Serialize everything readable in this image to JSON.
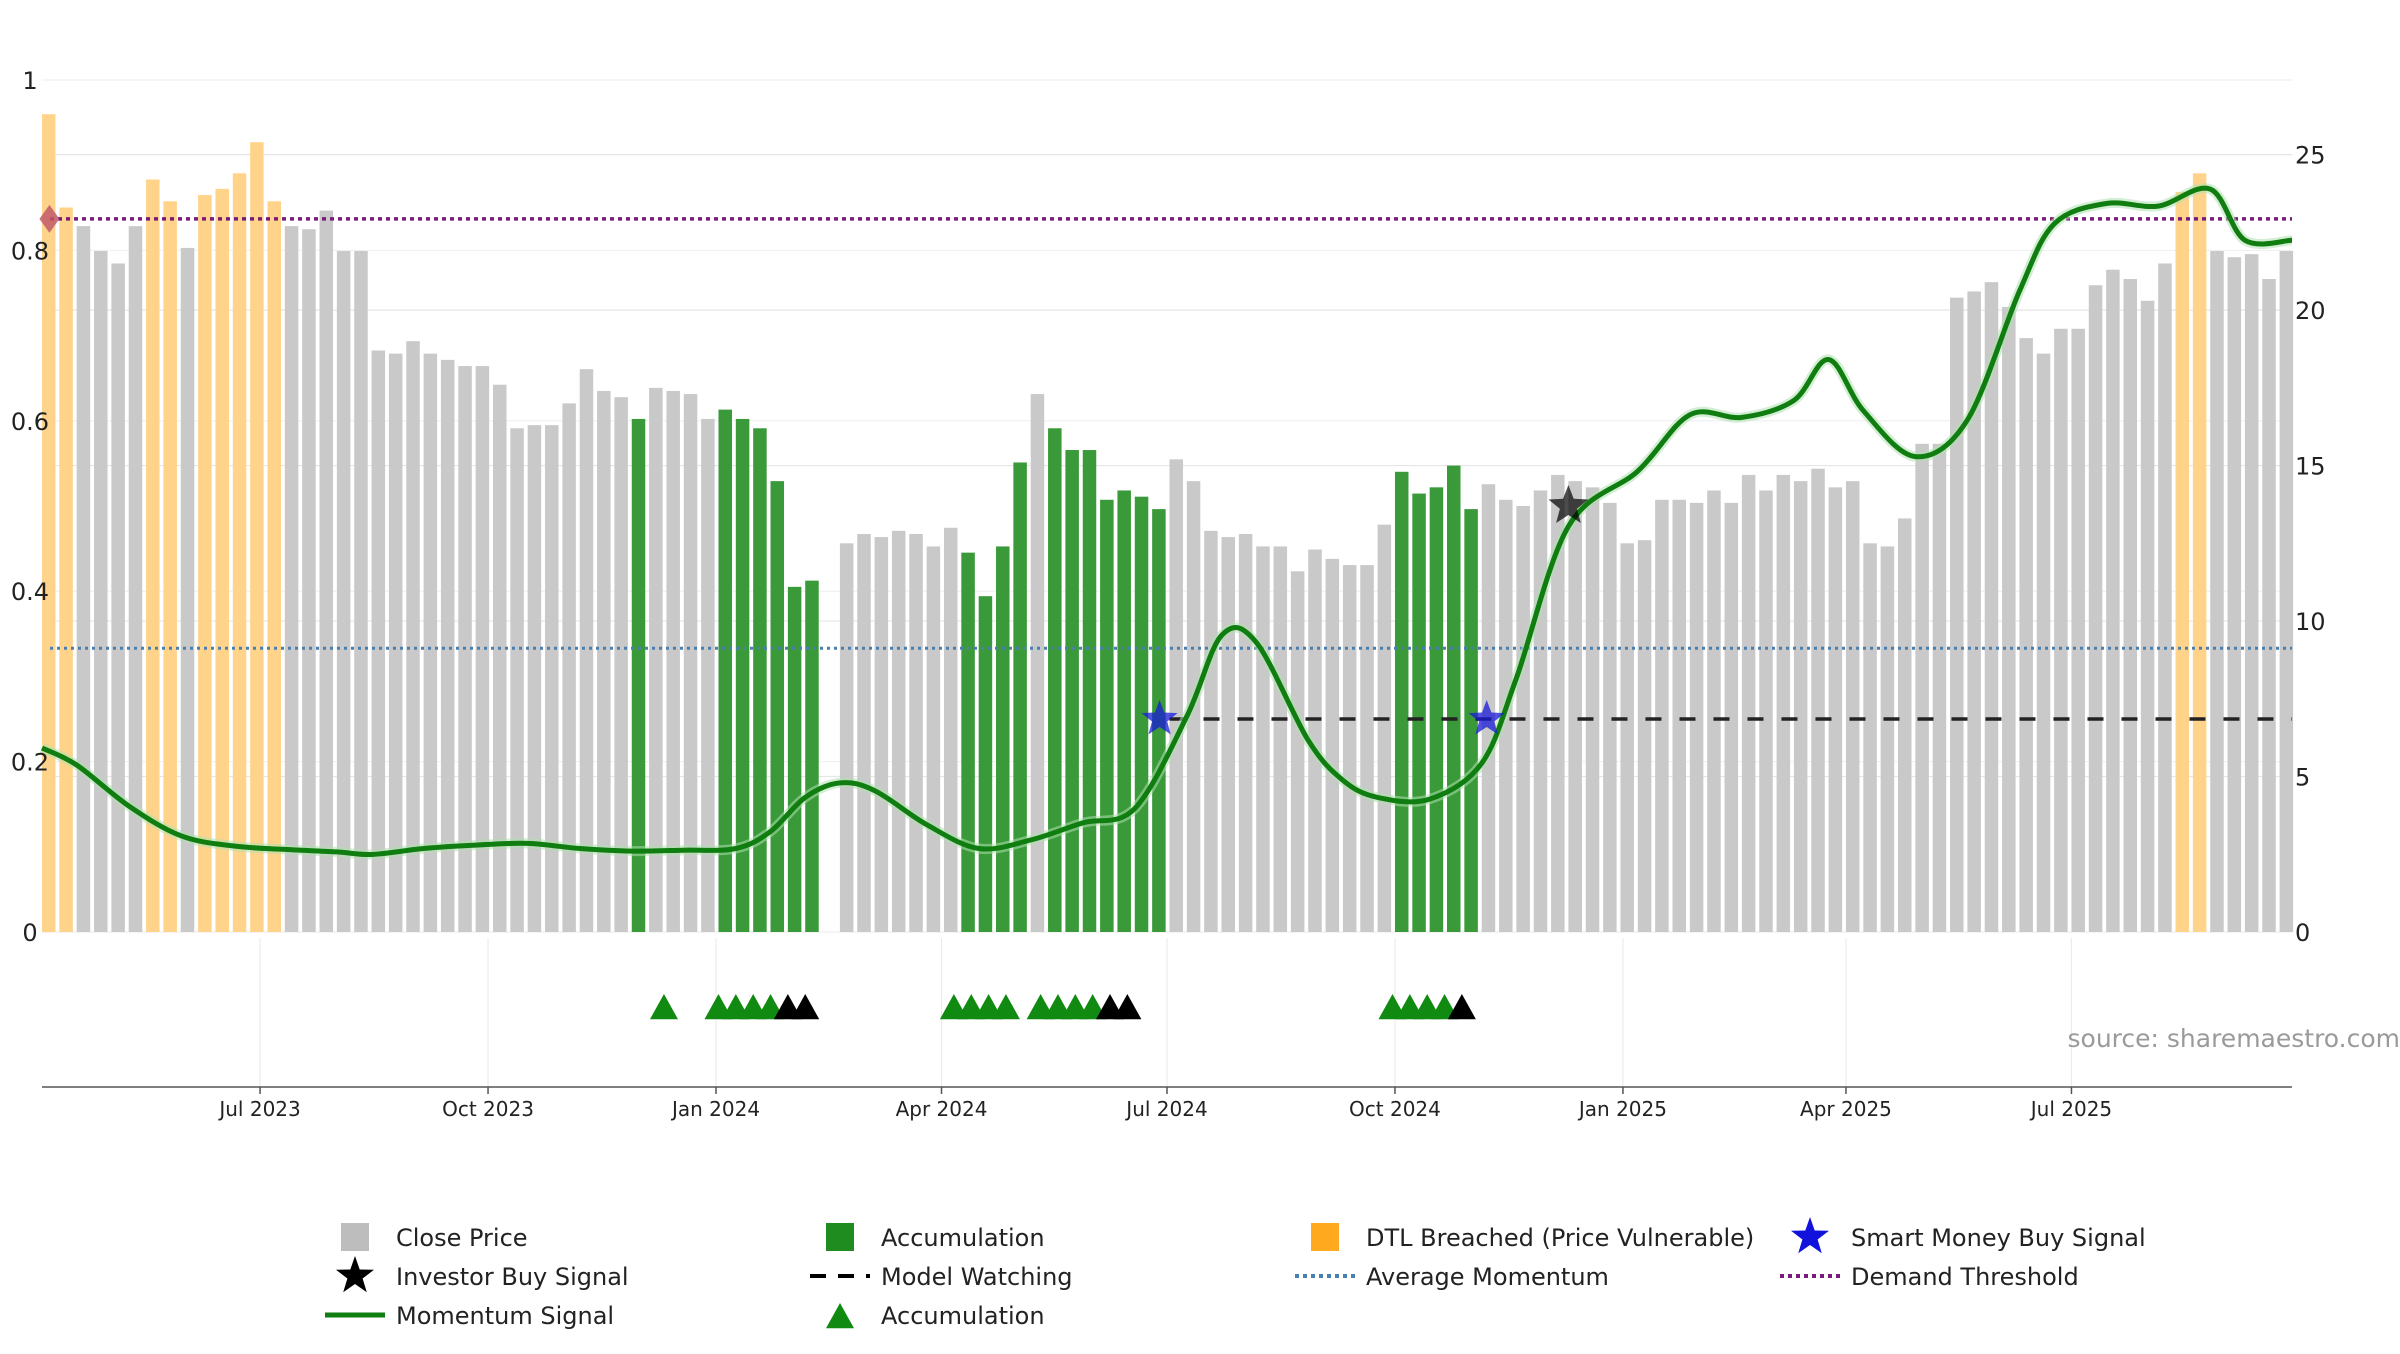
{
  "chart_data": {
    "type": "bar",
    "source_text": "source: sharemaestro.com",
    "left_axis": {
      "range": [
        0,
        1
      ],
      "ticks": [
        0,
        0.2,
        0.4,
        0.6,
        0.8,
        1
      ],
      "tick_labels": [
        "0",
        "0.2",
        "0.4",
        "0.6",
        "0.8",
        "1"
      ]
    },
    "right_axis": {
      "range": [
        0,
        27.4
      ],
      "ticks": [
        0,
        5,
        10,
        15,
        20,
        25
      ],
      "tick_labels": [
        "0",
        "5",
        "10",
        "15",
        "20",
        "25"
      ]
    },
    "x_axis": {
      "start": "2023-04-04",
      "end": "2025-09-28",
      "ticks": [
        "2023-07-01",
        "2023-10-01",
        "2024-01-01",
        "2024-04-01",
        "2024-07-01",
        "2024-10-01",
        "2025-01-01",
        "2025-04-01",
        "2025-07-01"
      ],
      "tick_labels": [
        "Jul 2023",
        "Oct 2023",
        "Jan 2024",
        "Apr 2024",
        "Jul 2024",
        "Oct 2024",
        "Jan 2025",
        "Apr 2025",
        "Jul 2025"
      ]
    },
    "grid": true,
    "bar_dates": [
      "2023-04-04",
      "2023-04-11",
      "2023-04-18",
      "2023-04-25",
      "2023-05-02",
      "2023-05-09",
      "2023-05-16",
      "2023-05-23",
      "2023-05-30",
      "2023-06-06",
      "2023-06-13",
      "2023-06-20",
      "2023-06-27",
      "2023-07-04",
      "2023-07-11",
      "2023-07-18",
      "2023-07-25",
      "2023-08-01",
      "2023-08-08",
      "2023-08-15",
      "2023-08-22",
      "2023-08-29",
      "2023-09-05",
      "2023-09-12",
      "2023-09-19",
      "2023-09-26",
      "2023-10-03",
      "2023-10-10",
      "2023-10-17",
      "2023-10-24",
      "2023-10-31",
      "2023-11-07",
      "2023-11-14",
      "2023-11-21",
      "2023-11-28",
      "2023-12-05",
      "2023-12-12",
      "2023-12-19",
      "2023-12-26",
      "2024-01-02",
      "2024-01-09",
      "2024-01-16",
      "2024-01-23",
      "2024-01-30",
      "2024-02-06",
      "2024-02-13",
      "2024-02-20",
      "2024-02-27",
      "2024-03-05",
      "2024-03-12",
      "2024-03-19",
      "2024-03-26",
      "2024-04-02",
      "2024-04-09",
      "2024-04-16",
      "2024-04-23",
      "2024-04-30",
      "2024-05-07",
      "2024-05-14",
      "2024-05-21",
      "2024-05-28",
      "2024-06-04",
      "2024-06-11",
      "2024-06-18",
      "2024-06-25",
      "2024-07-02",
      "2024-07-09",
      "2024-07-16",
      "2024-07-23",
      "2024-07-30",
      "2024-08-06",
      "2024-08-13",
      "2024-08-20",
      "2024-08-27",
      "2024-09-03",
      "2024-09-10",
      "2024-09-17",
      "2024-09-24",
      "2024-10-01",
      "2024-10-08",
      "2024-10-15",
      "2024-10-22",
      "2024-10-29",
      "2024-11-05",
      "2024-11-12",
      "2024-11-19",
      "2024-11-26",
      "2024-12-03",
      "2024-12-10",
      "2024-12-17",
      "2024-12-24",
      "2024-12-31",
      "2025-01-07",
      "2025-01-14",
      "2025-01-21",
      "2025-01-28",
      "2025-02-04",
      "2025-02-11",
      "2025-02-18",
      "2025-02-25",
      "2025-03-04",
      "2025-03-11",
      "2025-03-18",
      "2025-03-25",
      "2025-04-01",
      "2025-04-08",
      "2025-04-15",
      "2025-04-22",
      "2025-04-29",
      "2025-05-06",
      "2025-05-13",
      "2025-05-20",
      "2025-05-27",
      "2025-06-03",
      "2025-06-10",
      "2025-06-17",
      "2025-06-24",
      "2025-07-01",
      "2025-07-08",
      "2025-07-15",
      "2025-07-22",
      "2025-07-29",
      "2025-08-05",
      "2025-08-12",
      "2025-08-19",
      "2025-08-26",
      "2025-09-02",
      "2025-09-09",
      "2025-09-16",
      "2025-09-23"
    ],
    "close_price": [
      26.3,
      23.3,
      22.7,
      21.9,
      21.5,
      22.7,
      24.2,
      23.5,
      22.0,
      23.7,
      23.9,
      24.4,
      25.4,
      23.5,
      22.7,
      22.6,
      23.2,
      21.9,
      21.9,
      18.7,
      18.6,
      19.0,
      18.6,
      18.4,
      18.2,
      18.2,
      17.6,
      16.2,
      16.3,
      16.3,
      17.0,
      18.1,
      17.4,
      17.2,
      16.5,
      17.5,
      17.4,
      17.3,
      16.5,
      16.8,
      16.5,
      16.2,
      14.5,
      11.1,
      11.3,
      null,
      12.5,
      12.8,
      12.7,
      12.9,
      12.8,
      12.4,
      13.0,
      12.2,
      10.8,
      12.4,
      15.1,
      17.3,
      16.2,
      15.5,
      15.5,
      13.9,
      14.2,
      14.0,
      13.6,
      15.2,
      14.5,
      12.9,
      12.7,
      12.8,
      12.4,
      12.4,
      11.6,
      12.3,
      12.0,
      11.8,
      11.8,
      13.1,
      14.8,
      14.1,
      14.3,
      15.0,
      13.6,
      14.4,
      13.9,
      13.7,
      14.2,
      14.7,
      14.5,
      14.3,
      13.8,
      12.5,
      12.6,
      13.9,
      13.9,
      13.8,
      14.2,
      13.8,
      14.7,
      14.2,
      14.7,
      14.5,
      14.9,
      14.3,
      14.5,
      12.5,
      12.4,
      13.3,
      15.7,
      15.7,
      20.4,
      20.6,
      20.9,
      20.1,
      19.1,
      18.6,
      19.4,
      19.4,
      20.8,
      21.3,
      21.0,
      20.3,
      21.5,
      23.8,
      24.4,
      21.9,
      21.7,
      21.8,
      21.0,
      21.9
    ],
    "bar_category": [
      "dtl",
      "dtl",
      "close",
      "close",
      "close",
      "close",
      "dtl",
      "dtl",
      "close",
      "dtl",
      "dtl",
      "dtl",
      "dtl",
      "dtl",
      "close",
      "close",
      "close",
      "close",
      "close",
      "close",
      "close",
      "close",
      "close",
      "close",
      "close",
      "close",
      "close",
      "close",
      "close",
      "close",
      "close",
      "close",
      "close",
      "close",
      "accum",
      "close",
      "close",
      "close",
      "close",
      "accum",
      "accum",
      "accum",
      "accum",
      "accum",
      "accum",
      null,
      "close",
      "close",
      "close",
      "close",
      "close",
      "close",
      "close",
      "accum",
      "accum",
      "accum",
      "accum",
      "close",
      "accum",
      "accum",
      "accum",
      "accum",
      "accum",
      "accum",
      "accum",
      "close",
      "close",
      "close",
      "close",
      "close",
      "close",
      "close",
      "close",
      "close",
      "close",
      "close",
      "close",
      "close",
      "accum",
      "accum",
      "accum",
      "accum",
      "accum",
      "close",
      "close",
      "close",
      "close",
      "close",
      "close",
      "close",
      "close",
      "close",
      "close",
      "close",
      "close",
      "close",
      "close",
      "close",
      "close",
      "close",
      "close",
      "close",
      "close",
      "close",
      "close",
      "close",
      "close",
      "close",
      "close",
      "close",
      "close",
      "close",
      "close",
      "close",
      "close",
      "close",
      "close",
      "close",
      "close",
      "close",
      "close",
      "close",
      "close",
      "dtl",
      "dtl",
      "close",
      "close",
      "close",
      "close",
      "close"
    ],
    "momentum_signal": [
      [
        "2023-04-04",
        0.216
      ],
      [
        "2023-04-18",
        0.196
      ],
      [
        "2023-05-09",
        0.148
      ],
      [
        "2023-05-30",
        0.113
      ],
      [
        "2023-06-20",
        0.101
      ],
      [
        "2023-07-11",
        0.097
      ],
      [
        "2023-08-01",
        0.094
      ],
      [
        "2023-08-15",
        0.091
      ],
      [
        "2023-09-05",
        0.098
      ],
      [
        "2023-09-26",
        0.102
      ],
      [
        "2023-10-17",
        0.104
      ],
      [
        "2023-11-07",
        0.098
      ],
      [
        "2023-11-28",
        0.095
      ],
      [
        "2023-12-19",
        0.096
      ],
      [
        "2024-01-09",
        0.098
      ],
      [
        "2024-01-23",
        0.118
      ],
      [
        "2024-02-06",
        0.158
      ],
      [
        "2024-02-20",
        0.175
      ],
      [
        "2024-03-05",
        0.166
      ],
      [
        "2024-03-26",
        0.126
      ],
      [
        "2024-04-16",
        0.098
      ],
      [
        "2024-05-07",
        0.108
      ],
      [
        "2024-05-28",
        0.128
      ],
      [
        "2024-06-18",
        0.145
      ],
      [
        "2024-07-09",
        0.253
      ],
      [
        "2024-07-23",
        0.348
      ],
      [
        "2024-08-06",
        0.34
      ],
      [
        "2024-08-27",
        0.225
      ],
      [
        "2024-09-10",
        0.178
      ],
      [
        "2024-09-24",
        0.158
      ],
      [
        "2024-10-15",
        0.156
      ],
      [
        "2024-11-05",
        0.198
      ],
      [
        "2024-11-19",
        0.298
      ],
      [
        "2024-12-10",
        0.476
      ],
      [
        "2025-01-07",
        0.541
      ],
      [
        "2025-01-28",
        0.607
      ],
      [
        "2025-02-18",
        0.604
      ],
      [
        "2025-03-11",
        0.624
      ],
      [
        "2025-03-25",
        0.672
      ],
      [
        "2025-04-08",
        0.612
      ],
      [
        "2025-04-29",
        0.558
      ],
      [
        "2025-05-20",
        0.601
      ],
      [
        "2025-06-10",
        0.752
      ],
      [
        "2025-06-24",
        0.831
      ],
      [
        "2025-07-15",
        0.855
      ],
      [
        "2025-08-05",
        0.852
      ],
      [
        "2025-08-26",
        0.872
      ],
      [
        "2025-09-09",
        0.812
      ],
      [
        "2025-09-28",
        0.812
      ]
    ],
    "average_momentum": 0.333,
    "demand_threshold": 0.837,
    "model_watching": {
      "start": "2024-07-02",
      "end": "2025-09-28",
      "value": 0.25
    },
    "smart_money_buy_signals": [
      {
        "date": "2024-06-28",
        "value": 0.25
      },
      {
        "date": "2024-11-07",
        "value": 0.25
      }
    ],
    "investor_buy_signals": [
      {
        "date": "2024-12-10",
        "value": 0.5
      }
    ],
    "red_marker": {
      "date": "2023-04-07",
      "value": 0.837
    },
    "accumulation_markers": [
      {
        "date": "2023-12-11",
        "color": "green"
      },
      {
        "date": "2024-01-02",
        "color": "green"
      },
      {
        "date": "2024-01-09",
        "color": "green"
      },
      {
        "date": "2024-01-16",
        "color": "green"
      },
      {
        "date": "2024-01-23",
        "color": "green"
      },
      {
        "date": "2024-01-30",
        "color": "black"
      },
      {
        "date": "2024-02-06",
        "color": "black"
      },
      {
        "date": "2024-04-06",
        "color": "green"
      },
      {
        "date": "2024-04-13",
        "color": "green"
      },
      {
        "date": "2024-04-20",
        "color": "green"
      },
      {
        "date": "2024-04-27",
        "color": "green"
      },
      {
        "date": "2024-05-11",
        "color": "green"
      },
      {
        "date": "2024-05-18",
        "color": "green"
      },
      {
        "date": "2024-05-25",
        "color": "green"
      },
      {
        "date": "2024-06-01",
        "color": "green"
      },
      {
        "date": "2024-06-08",
        "color": "black"
      },
      {
        "date": "2024-06-15",
        "color": "black"
      },
      {
        "date": "2024-09-30",
        "color": "green"
      },
      {
        "date": "2024-10-07",
        "color": "green"
      },
      {
        "date": "2024-10-14",
        "color": "green"
      },
      {
        "date": "2024-10-21",
        "color": "green"
      },
      {
        "date": "2024-10-28",
        "color": "black"
      }
    ],
    "colors": {
      "close": "#c9c9c9",
      "accum": "#3a9a3a",
      "dtl": "#ffd48a",
      "momentum": "#0f7d0f",
      "momentum_halo": "#aee0ae",
      "avg_momentum": "#4a7fb0",
      "threshold": "#7a1a7a",
      "watching": "#222222",
      "smart_money": "#1a1ad8",
      "investor": "#000000",
      "red_marker": "#c25a6a",
      "marker_green": "#118a11",
      "marker_black": "#000000"
    },
    "legend": [
      {
        "label": "Close Price",
        "symbol": "square",
        "color": "#bdbdbd"
      },
      {
        "label": "Accumulation",
        "symbol": "square",
        "color": "#1e8c1e"
      },
      {
        "label": "DTL Breached (Price Vulnerable)",
        "symbol": "square",
        "color": "#ffa91f"
      },
      {
        "label": "Smart Money Buy Signal",
        "symbol": "star",
        "color": "#1212dd"
      },
      {
        "label": "Investor Buy Signal",
        "symbol": "star",
        "color": "#000000"
      },
      {
        "label": "Model Watching",
        "symbol": "dash",
        "color": "#000000"
      },
      {
        "label": "Average Momentum",
        "symbol": "dot",
        "color": "#4a7fb0"
      },
      {
        "label": "Demand Threshold",
        "symbol": "dot",
        "color": "#7a1a7a"
      },
      {
        "label": "Momentum Signal",
        "symbol": "line",
        "color": "#0f7d0f"
      },
      {
        "label": "Accumulation",
        "symbol": "triangle",
        "color": "#118a11"
      }
    ]
  }
}
